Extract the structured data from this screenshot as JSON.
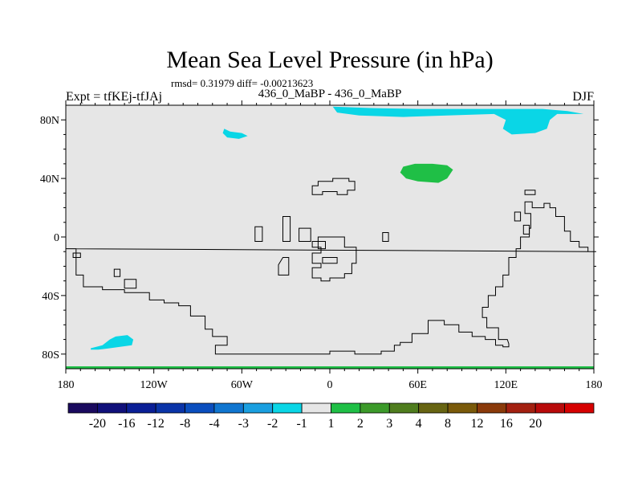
{
  "chart_data": {
    "type": "heatmap",
    "title": "Mean Sea Level Pressure (in hPa)",
    "stats": "rmsd= 0.31979 diff= -0.00213623",
    "left_label": "Expt = tfKEj-tfJAj",
    "center_label": "436_0_MaBP - 436_0_MaBP",
    "right_label": "DJF",
    "x_ticks": [
      {
        "value": -180,
        "label": "180"
      },
      {
        "value": -120,
        "label": "120W"
      },
      {
        "value": -60,
        "label": "60W"
      },
      {
        "value": 0,
        "label": "0"
      },
      {
        "value": 60,
        "label": "60E"
      },
      {
        "value": 120,
        "label": "120E"
      },
      {
        "value": 180,
        "label": "180"
      }
    ],
    "y_ticks": [
      {
        "value": 80,
        "label": "80N"
      },
      {
        "value": 40,
        "label": "40N"
      },
      {
        "value": 0,
        "label": "0"
      },
      {
        "value": -40,
        "label": "40S"
      },
      {
        "value": -80,
        "label": "80S"
      }
    ],
    "xlim": [
      -180,
      180
    ],
    "ylim": [
      -90,
      90
    ],
    "background_color": "#e6e6e6",
    "colorbar": {
      "colors": [
        "#1a0a5e",
        "#10107a",
        "#0a1f96",
        "#0a34a8",
        "#0a4ebe",
        "#1076d0",
        "#1a9fe0",
        "#0ad6e6",
        "#e6e6e6",
        "#1fbf46",
        "#3c9a2a",
        "#4f7d1e",
        "#676412",
        "#7a5a0a",
        "#8a3a0a",
        "#a32010",
        "#b80a0a",
        "#d60000"
      ],
      "labels": [
        "-20",
        "-16",
        "-12",
        "-8",
        "-4",
        "-3",
        "-2",
        "-1",
        "1",
        "2",
        "3",
        "4",
        "8",
        "12",
        "16",
        "20"
      ]
    },
    "anomaly_regions": [
      {
        "level": "-2 to -1",
        "color": "#0ad6e6",
        "points": [
          [
            2,
            89
          ],
          [
            30,
            88
          ],
          [
            60,
            87.5
          ],
          [
            100,
            87.5
          ],
          [
            130,
            87.5
          ],
          [
            145,
            87.5
          ],
          [
            162,
            86
          ],
          [
            173,
            84
          ],
          [
            155,
            84
          ],
          [
            150,
            80
          ],
          [
            148,
            74
          ],
          [
            140,
            71
          ],
          [
            124,
            70
          ],
          [
            118,
            74
          ],
          [
            120,
            80
          ],
          [
            112,
            84
          ],
          [
            80,
            83
          ],
          [
            50,
            82
          ],
          [
            20,
            83
          ],
          [
            5,
            85
          ]
        ]
      },
      {
        "level": "-2 to -1",
        "color": "#0ad6e6",
        "points": [
          [
            -72,
            74
          ],
          [
            -68,
            72
          ],
          [
            -60,
            71
          ],
          [
            -56,
            69
          ],
          [
            -62,
            67
          ],
          [
            -70,
            68
          ],
          [
            -73,
            71
          ]
        ]
      },
      {
        "level": "-2 to -1",
        "color": "#0ad6e6",
        "points": [
          [
            -163,
            -76
          ],
          [
            -155,
            -74
          ],
          [
            -150,
            -70
          ],
          [
            -146,
            -68
          ],
          [
            -138,
            -67
          ],
          [
            -134,
            -70
          ],
          [
            -135,
            -74
          ],
          [
            -143,
            -75
          ],
          [
            -150,
            -76
          ],
          [
            -158,
            -77
          ],
          [
            -163,
            -77
          ]
        ]
      },
      {
        "level": "1 to 2",
        "color": "#1fbf46",
        "points": [
          [
            50,
            48
          ],
          [
            58,
            50
          ],
          [
            70,
            50
          ],
          [
            80,
            49
          ],
          [
            84,
            46
          ],
          [
            80,
            40
          ],
          [
            74,
            37
          ],
          [
            60,
            38
          ],
          [
            52,
            40
          ],
          [
            48,
            44
          ]
        ]
      }
    ],
    "land_boundaries": [
      [
        [
          -180,
          -8
        ],
        [
          -173,
          -8
        ],
        [
          -173,
          -26
        ],
        [
          -168,
          -26
        ],
        [
          -168,
          -34
        ],
        [
          -155,
          -34
        ],
        [
          -155,
          -36
        ],
        [
          -140,
          -36
        ],
        [
          -140,
          -38
        ],
        [
          -123,
          -38
        ],
        [
          -123,
          -43
        ],
        [
          -113,
          -43
        ],
        [
          -113,
          -45
        ],
        [
          -103,
          -45
        ],
        [
          -103,
          -47
        ],
        [
          -95,
          -47
        ],
        [
          -95,
          -54
        ],
        [
          -85,
          -54
        ],
        [
          -85,
          -63
        ],
        [
          -80,
          -63
        ],
        [
          -80,
          -68
        ],
        [
          -70,
          -68
        ],
        [
          -70,
          -74
        ],
        [
          -78,
          -74
        ],
        [
          -78,
          -80
        ],
        [
          -40,
          -80
        ],
        [
          0,
          -80
        ],
        [
          0,
          -78
        ],
        [
          17,
          -78
        ],
        [
          17,
          -80
        ],
        [
          35,
          -80
        ],
        [
          35,
          -78
        ],
        [
          44,
          -78
        ],
        [
          44,
          -74
        ],
        [
          48,
          -74
        ],
        [
          48,
          -72
        ],
        [
          56,
          -72
        ],
        [
          56,
          -66
        ],
        [
          67,
          -66
        ],
        [
          67,
          -57
        ],
        [
          78,
          -57
        ],
        [
          78,
          -60
        ],
        [
          88,
          -60
        ],
        [
          88,
          -65
        ],
        [
          97,
          -65
        ],
        [
          97,
          -68
        ],
        [
          106,
          -68
        ],
        [
          106,
          -70
        ],
        [
          113,
          -70
        ],
        [
          113,
          -74
        ],
        [
          118,
          -74
        ],
        [
          118,
          -75
        ],
        [
          122,
          -75
        ],
        [
          122,
          -73
        ],
        [
          121,
          -70
        ],
        [
          115,
          -70
        ],
        [
          115,
          -62
        ],
        [
          107,
          -62
        ],
        [
          107,
          -55
        ],
        [
          104,
          -55
        ],
        [
          104,
          -48
        ],
        [
          108,
          -48
        ],
        [
          108,
          -40
        ],
        [
          113,
          -40
        ],
        [
          113,
          -34
        ],
        [
          118,
          -34
        ],
        [
          118,
          -26
        ],
        [
          122,
          -26
        ],
        [
          122,
          -14
        ],
        [
          127,
          -14
        ],
        [
          127,
          -8
        ],
        [
          130,
          -8
        ],
        [
          130,
          0
        ],
        [
          136,
          0
        ],
        [
          136,
          6
        ],
        [
          137,
          6
        ],
        [
          137,
          16
        ],
        [
          133,
          16
        ],
        [
          133,
          24
        ],
        [
          138,
          24
        ],
        [
          138,
          20
        ],
        [
          146,
          20
        ],
        [
          146,
          23
        ],
        [
          150,
          23
        ],
        [
          150,
          20
        ],
        [
          154,
          20
        ],
        [
          154,
          14
        ],
        [
          160,
          14
        ],
        [
          160,
          4
        ],
        [
          164,
          4
        ],
        [
          164,
          -3
        ],
        [
          170,
          -3
        ],
        [
          170,
          -7
        ],
        [
          176,
          -7
        ],
        [
          176,
          -10
        ],
        [
          180,
          -10
        ]
      ],
      [
        [
          -175,
          -11
        ],
        [
          -170,
          -11
        ],
        [
          -170,
          -14
        ],
        [
          -175,
          -14
        ]
      ],
      [
        [
          -147,
          -22
        ],
        [
          -143,
          -22
        ],
        [
          -143,
          -27
        ],
        [
          -147,
          -27
        ]
      ],
      [
        [
          -140,
          -29
        ],
        [
          -132,
          -29
        ],
        [
          -132,
          -35
        ],
        [
          -140,
          -35
        ]
      ],
      [
        [
          -51,
          7
        ],
        [
          -46,
          7
        ],
        [
          -46,
          -3
        ],
        [
          -51,
          -3
        ]
      ],
      [
        [
          -32,
          14
        ],
        [
          -27,
          14
        ],
        [
          -27,
          -3
        ],
        [
          -32,
          -3
        ]
      ],
      [
        [
          -32,
          -14
        ],
        [
          -28,
          -14
        ],
        [
          -28,
          -26
        ],
        [
          -35,
          -26
        ],
        [
          -35,
          -19
        ]
      ],
      [
        [
          -21,
          6
        ],
        [
          -13,
          6
        ],
        [
          -13,
          -3
        ],
        [
          -21,
          -3
        ]
      ],
      [
        [
          -8,
          -3
        ],
        [
          -3,
          -3
        ],
        [
          -3,
          -8
        ],
        [
          -8,
          -8
        ]
      ],
      [
        [
          -12,
          35
        ],
        [
          -8,
          35
        ],
        [
          -8,
          38
        ],
        [
          2,
          38
        ],
        [
          2,
          40
        ],
        [
          13,
          40
        ],
        [
          13,
          38
        ],
        [
          17,
          38
        ],
        [
          17,
          32
        ],
        [
          12,
          32
        ],
        [
          12,
          29
        ],
        [
          5,
          29
        ],
        [
          5,
          31
        ],
        [
          -5,
          31
        ],
        [
          -5,
          29
        ],
        [
          -12,
          29
        ]
      ],
      [
        [
          -8,
          0
        ],
        [
          10,
          0
        ],
        [
          10,
          -7
        ],
        [
          18,
          -7
        ],
        [
          18,
          -18
        ],
        [
          15,
          -18
        ],
        [
          15,
          -25
        ],
        [
          10,
          -25
        ],
        [
          10,
          -28
        ],
        [
          0,
          -28
        ],
        [
          0,
          -30
        ],
        [
          -6,
          -30
        ],
        [
          -6,
          -28
        ],
        [
          -12,
          -28
        ],
        [
          -12,
          -21
        ],
        [
          -6,
          -21
        ],
        [
          -6,
          -18
        ],
        [
          -12,
          -18
        ],
        [
          -12,
          -11
        ],
        [
          -6,
          -11
        ],
        [
          -6,
          -7
        ],
        [
          -12,
          -7
        ],
        [
          -12,
          -3
        ],
        [
          -8,
          -3
        ]
      ],
      [
        [
          -5,
          -14
        ],
        [
          5,
          -14
        ],
        [
          5,
          -18
        ],
        [
          -5,
          -18
        ]
      ],
      [
        [
          36,
          3
        ],
        [
          40,
          3
        ],
        [
          40,
          -3
        ],
        [
          36,
          -3
        ]
      ],
      [
        [
          133,
          32
        ],
        [
          140,
          32
        ],
        [
          140,
          29
        ],
        [
          133,
          29
        ]
      ],
      [
        [
          126,
          17
        ],
        [
          130,
          17
        ],
        [
          130,
          11
        ],
        [
          126,
          11
        ]
      ],
      [
        [
          132,
          8
        ],
        [
          136,
          8
        ],
        [
          136,
          2
        ],
        [
          132,
          2
        ]
      ]
    ]
  }
}
